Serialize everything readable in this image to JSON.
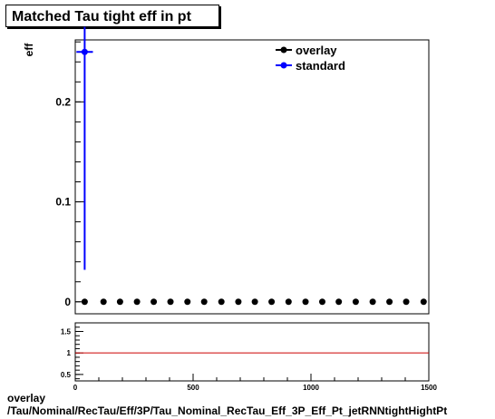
{
  "title": "Matched Tau tight eff in pt",
  "footer": {
    "line1": "overlay",
    "line2": "/Tau/Nominal/RecTau/Eff/3P/Tau_Nominal_RecTau_Eff_3P_Eff_Pt_jetRNNtightHightPt"
  },
  "chart_data": [
    {
      "type": "scatter",
      "ylabel": "eff",
      "xlim": [
        0,
        1500
      ],
      "ylim": [
        -0.012,
        0.262
      ],
      "y_ticks": [
        0,
        0.1,
        0.2
      ],
      "y_tick_labels": [
        "0",
        "0.1",
        "0.2"
      ],
      "legend": {
        "placement": "top-right",
        "entries": [
          "overlay",
          "standard"
        ]
      },
      "series": [
        {
          "name": "overlay",
          "color": "#000000",
          "x": [
            40,
            120,
            190,
            262,
            333,
            404,
            476,
            547,
            620,
            692,
            762,
            833,
            905,
            977,
            1048,
            1118,
            1190,
            1262,
            1333,
            1404,
            1478
          ],
          "y": [
            0,
            0,
            0,
            0,
            0,
            0,
            0,
            0,
            0,
            0,
            0,
            0,
            0,
            0,
            0,
            0,
            0,
            0,
            0,
            0,
            0
          ]
        },
        {
          "name": "standard",
          "color": "#0000ff",
          "x": [
            40
          ],
          "y": [
            0.25
          ],
          "x_err": [
            35
          ],
          "y_err_low": [
            0.218
          ],
          "y_err_high": [
            0.025
          ]
        }
      ]
    },
    {
      "type": "line",
      "xlim": [
        0,
        1500
      ],
      "ylim": [
        0.35,
        1.7
      ],
      "x_ticks": [
        0,
        500,
        1000,
        1500
      ],
      "x_tick_labels": [
        "0",
        "500",
        "1000",
        "1500"
      ],
      "y_ticks": [
        0.5,
        1,
        1.5
      ],
      "y_tick_labels": [
        "0.5",
        "1",
        "1.5"
      ],
      "reference_line": {
        "y": 1,
        "color": "#cc0000"
      }
    }
  ]
}
